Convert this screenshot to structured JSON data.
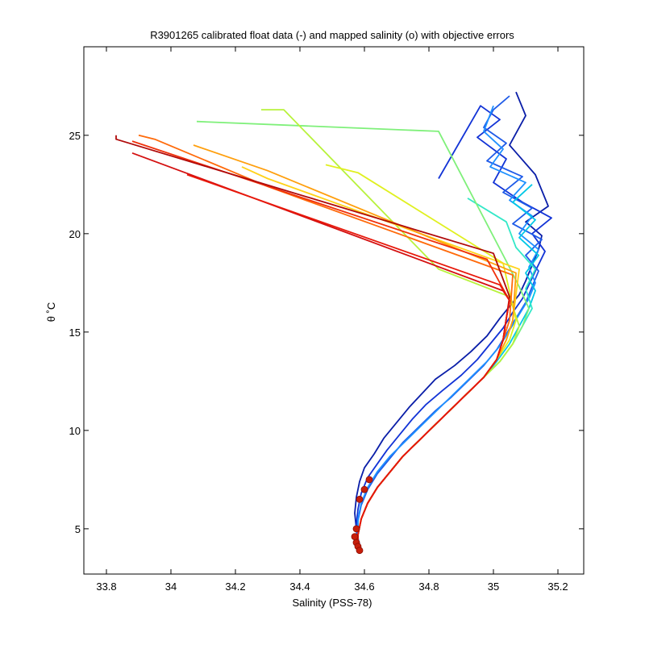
{
  "chart_data": {
    "type": "line",
    "title": "R3901265 calibrated float data (-) and mapped salinity (o) with objective errors",
    "xlabel": "Salinity (PSS-78)",
    "ylabel": "θ ˚C",
    "xlim": [
      33.73,
      35.28
    ],
    "ylim": [
      2.7,
      29.5
    ],
    "xticks": [
      "33.8",
      "34",
      "34.2",
      "34.4",
      "34.6",
      "34.8",
      "35",
      "35.2"
    ],
    "xtick_values": [
      33.8,
      34.0,
      34.2,
      34.4,
      34.6,
      34.8,
      35.0,
      35.2
    ],
    "yticks": [
      "5",
      "10",
      "15",
      "20",
      "25"
    ],
    "ytick_values": [
      5,
      10,
      15,
      20,
      25
    ],
    "grid": false,
    "legend": "none",
    "colormap": "jet (early profiles blue, late profiles red)",
    "series": [
      {
        "color": "#0a1ea8",
        "salinity": [
          34.585,
          34.58,
          34.575,
          34.57,
          34.575,
          34.585,
          34.6,
          34.63,
          34.66,
          34.7,
          34.74,
          34.78,
          34.82,
          34.88,
          34.93,
          34.98,
          35.02,
          35.05,
          35.08,
          35.1,
          35.12,
          35.14,
          35.15,
          35.1,
          35.17,
          35.13,
          35.05,
          35.1,
          35.07
        ],
        "theta": [
          3.8,
          4.3,
          5.0,
          5.8,
          6.6,
          7.4,
          8.1,
          8.8,
          9.6,
          10.4,
          11.2,
          11.9,
          12.6,
          13.3,
          14.0,
          14.8,
          15.7,
          16.3,
          16.9,
          17.6,
          18.4,
          19.2,
          19.9,
          20.6,
          21.4,
          23.0,
          24.5,
          26.0,
          27.2
        ]
      },
      {
        "color": "#1233d6",
        "salinity": [
          34.59,
          34.58,
          34.575,
          34.58,
          34.59,
          34.61,
          34.64,
          34.67,
          34.71,
          34.75,
          34.79,
          34.84,
          34.9,
          34.95,
          34.99,
          35.03,
          35.06,
          35.09,
          35.11,
          35.13,
          35.16,
          35.12,
          35.18,
          35.09,
          35.0,
          35.04,
          34.95,
          35.02,
          34.96,
          34.83
        ],
        "theta": [
          3.9,
          4.5,
          5.2,
          6.0,
          6.8,
          7.6,
          8.3,
          9.0,
          9.8,
          10.6,
          11.3,
          12.0,
          12.8,
          13.6,
          14.4,
          15.2,
          16.0,
          16.7,
          17.4,
          18.1,
          19.1,
          20.0,
          20.8,
          21.6,
          22.6,
          23.8,
          24.9,
          25.8,
          26.5,
          22.8
        ]
      },
      {
        "color": "#1f5be8",
        "salinity": [
          34.58,
          34.575,
          34.58,
          34.59,
          34.61,
          34.64,
          34.68,
          34.72,
          34.77,
          34.82,
          34.87,
          34.92,
          34.97,
          35.01,
          35.04,
          35.07,
          35.1,
          35.12,
          35.14,
          35.1,
          35.15,
          35.06,
          35.12,
          35.03,
          35.09,
          34.98,
          35.04,
          34.97,
          35.0,
          35.05
        ],
        "theta": [
          3.9,
          4.6,
          5.4,
          6.2,
          7.0,
          7.8,
          8.6,
          9.4,
          10.2,
          11.0,
          11.7,
          12.5,
          13.3,
          14.1,
          14.9,
          15.7,
          16.5,
          17.3,
          18.1,
          18.9,
          19.7,
          20.5,
          21.3,
          22.1,
          22.9,
          23.7,
          24.6,
          25.4,
          26.3,
          27.0
        ]
      },
      {
        "color": "#1e90ff",
        "salinity": [
          34.585,
          34.58,
          34.58,
          34.59,
          34.61,
          34.64,
          34.68,
          34.73,
          34.78,
          34.83,
          34.88,
          34.93,
          34.98,
          35.02,
          35.05,
          35.08,
          35.11,
          35.13,
          35.11,
          35.14,
          35.08,
          35.12,
          35.05,
          35.1,
          34.99,
          35.03,
          34.97,
          35.0
        ],
        "theta": [
          3.9,
          4.6,
          5.5,
          6.3,
          7.1,
          7.9,
          8.7,
          9.5,
          10.3,
          11.1,
          11.9,
          12.7,
          13.5,
          14.3,
          15.1,
          15.9,
          16.7,
          17.5,
          18.3,
          19.2,
          20.0,
          20.9,
          21.7,
          22.6,
          23.4,
          24.3,
          25.2,
          26.5
        ]
      },
      {
        "color": "#00c8e6",
        "salinity": [
          34.58,
          34.58,
          34.59,
          34.61,
          34.64,
          34.68,
          34.72,
          34.77,
          34.82,
          34.87,
          34.92,
          34.97,
          35.01,
          35.05,
          35.08,
          35.11,
          35.13,
          35.1,
          35.14,
          35.08,
          35.13,
          35.06,
          35.12
        ],
        "theta": [
          3.9,
          4.7,
          5.5,
          6.3,
          7.1,
          7.9,
          8.7,
          9.5,
          10.3,
          11.1,
          11.9,
          12.7,
          13.5,
          14.4,
          15.3,
          16.2,
          17.1,
          18.0,
          18.9,
          19.8,
          20.7,
          21.6,
          22.5
        ]
      },
      {
        "color": "#33e8c8",
        "salinity": [
          34.58,
          34.58,
          34.59,
          34.61,
          34.64,
          34.68,
          34.72,
          34.77,
          34.82,
          34.87,
          34.92,
          34.97,
          35.02,
          35.06,
          35.09,
          35.12,
          35.1,
          35.13,
          35.07,
          35.04,
          34.92
        ],
        "theta": [
          3.9,
          4.7,
          5.5,
          6.3,
          7.1,
          7.9,
          8.7,
          9.5,
          10.3,
          11.1,
          11.9,
          12.7,
          13.5,
          14.4,
          15.3,
          16.2,
          17.2,
          18.2,
          19.3,
          20.6,
          21.8
        ]
      },
      {
        "color": "#7ff07a",
        "salinity": [
          34.58,
          34.58,
          34.59,
          34.61,
          34.64,
          34.68,
          34.72,
          34.77,
          34.82,
          34.87,
          34.92,
          34.97,
          35.02,
          35.06,
          35.09,
          35.11,
          35.08,
          35.04,
          34.83,
          34.08
        ],
        "theta": [
          3.9,
          4.7,
          5.5,
          6.3,
          7.1,
          7.9,
          8.7,
          9.5,
          10.3,
          11.1,
          11.9,
          12.7,
          13.5,
          14.4,
          15.3,
          16.2,
          17.3,
          18.6,
          25.2,
          25.7
        ]
      },
      {
        "color": "#b8f23c",
        "salinity": [
          34.58,
          34.58,
          34.59,
          34.61,
          34.64,
          34.68,
          34.72,
          34.77,
          34.82,
          34.87,
          34.92,
          34.97,
          35.02,
          35.06,
          35.08,
          35.05,
          34.83,
          34.35,
          34.28
        ],
        "theta": [
          3.9,
          4.7,
          5.5,
          6.3,
          7.1,
          7.9,
          8.7,
          9.5,
          10.3,
          11.1,
          11.9,
          12.7,
          13.5,
          14.4,
          15.3,
          16.8,
          18.2,
          26.3,
          26.3
        ]
      },
      {
        "color": "#e0f020",
        "salinity": [
          34.58,
          34.58,
          34.59,
          34.61,
          34.64,
          34.68,
          34.72,
          34.77,
          34.82,
          34.87,
          34.92,
          34.97,
          35.01,
          35.05,
          35.07,
          35.03,
          34.58,
          34.48
        ],
        "theta": [
          3.9,
          4.7,
          5.5,
          6.3,
          7.1,
          7.9,
          8.7,
          9.5,
          10.3,
          11.1,
          11.9,
          12.7,
          13.6,
          14.6,
          15.6,
          18.5,
          23.1,
          23.5
        ]
      },
      {
        "color": "#ffd21a",
        "salinity": [
          34.58,
          34.58,
          34.59,
          34.61,
          34.64,
          34.68,
          34.72,
          34.77,
          34.82,
          34.87,
          34.92,
          34.97,
          35.01,
          35.04,
          35.06,
          35.08,
          34.3,
          34.22
        ],
        "theta": [
          3.9,
          4.7,
          5.5,
          6.3,
          7.1,
          7.9,
          8.7,
          9.5,
          10.3,
          11.1,
          11.9,
          12.7,
          13.6,
          14.6,
          15.6,
          18.2,
          22.8,
          23.4
        ]
      },
      {
        "color": "#ff9f0d",
        "salinity": [
          34.58,
          34.58,
          34.59,
          34.61,
          34.64,
          34.68,
          34.72,
          34.77,
          34.82,
          34.87,
          34.92,
          34.97,
          35.01,
          35.04,
          35.06,
          35.07,
          34.3,
          34.07
        ],
        "theta": [
          3.9,
          4.7,
          5.5,
          6.3,
          7.1,
          7.9,
          8.7,
          9.5,
          10.3,
          11.1,
          11.9,
          12.7,
          13.6,
          14.6,
          15.6,
          18.0,
          23.2,
          24.5
        ]
      },
      {
        "color": "#ff6a0a",
        "salinity": [
          34.58,
          34.58,
          34.59,
          34.61,
          34.64,
          34.68,
          34.72,
          34.77,
          34.82,
          34.87,
          34.92,
          34.97,
          35.01,
          35.03,
          35.05,
          35.06,
          34.3,
          33.95,
          33.9
        ],
        "theta": [
          3.9,
          4.7,
          5.5,
          6.3,
          7.1,
          7.9,
          8.7,
          9.5,
          10.3,
          11.1,
          11.9,
          12.7,
          13.6,
          14.6,
          15.6,
          17.9,
          22.4,
          24.8,
          25.0
        ]
      },
      {
        "color": "#f0300a",
        "salinity": [
          34.58,
          34.58,
          34.59,
          34.61,
          34.64,
          34.68,
          34.72,
          34.77,
          34.82,
          34.87,
          34.92,
          34.97,
          35.01,
          35.03,
          35.04,
          35.05,
          34.98,
          33.88
        ],
        "theta": [
          3.9,
          4.7,
          5.5,
          6.3,
          7.1,
          7.9,
          8.7,
          9.5,
          10.3,
          11.1,
          11.9,
          12.7,
          13.6,
          14.6,
          15.7,
          16.6,
          18.7,
          24.7
        ]
      },
      {
        "color": "#d41010",
        "salinity": [
          34.58,
          34.58,
          34.59,
          34.61,
          34.64,
          34.68,
          34.72,
          34.77,
          34.82,
          34.87,
          34.92,
          34.97,
          35.01,
          35.03,
          35.04,
          35.05,
          35.03,
          33.88
        ],
        "theta": [
          3.9,
          4.7,
          5.5,
          6.3,
          7.1,
          7.9,
          8.7,
          9.5,
          10.3,
          11.1,
          11.9,
          12.7,
          13.6,
          14.6,
          15.7,
          16.6,
          17.1,
          24.1
        ]
      },
      {
        "color": "#b00a0a",
        "salinity": [
          34.58,
          34.58,
          34.59,
          34.61,
          34.64,
          34.68,
          34.72,
          34.77,
          34.82,
          34.87,
          34.92,
          34.97,
          35.01,
          35.03,
          35.04,
          35.05,
          35.0,
          33.83,
          33.83
        ],
        "theta": [
          3.9,
          4.7,
          5.5,
          6.3,
          7.1,
          7.9,
          8.7,
          9.5,
          10.3,
          11.1,
          11.9,
          12.7,
          13.6,
          14.6,
          15.7,
          16.8,
          19.0,
          24.8,
          25.0
        ]
      },
      {
        "color": "#e8180a",
        "salinity": [
          34.58,
          34.58,
          34.59,
          34.61,
          34.64,
          34.68,
          34.72,
          34.77,
          34.82,
          34.87,
          34.92,
          34.97,
          35.01,
          35.03,
          35.04,
          35.05,
          35.02,
          34.05
        ],
        "theta": [
          3.9,
          4.7,
          5.5,
          6.3,
          7.1,
          7.9,
          8.7,
          9.5,
          10.3,
          11.1,
          11.9,
          12.7,
          13.6,
          14.6,
          15.7,
          16.6,
          17.4,
          23.0
        ]
      }
    ],
    "mapped_points": {
      "label": "mapped salinity (o)",
      "color": "#c81e0a",
      "salinity": [
        34.615,
        34.6,
        34.585,
        34.575,
        34.57,
        34.575,
        34.58,
        34.585
      ],
      "theta": [
        7.5,
        7.0,
        6.5,
        5.0,
        4.6,
        4.3,
        4.1,
        3.9
      ]
    }
  }
}
